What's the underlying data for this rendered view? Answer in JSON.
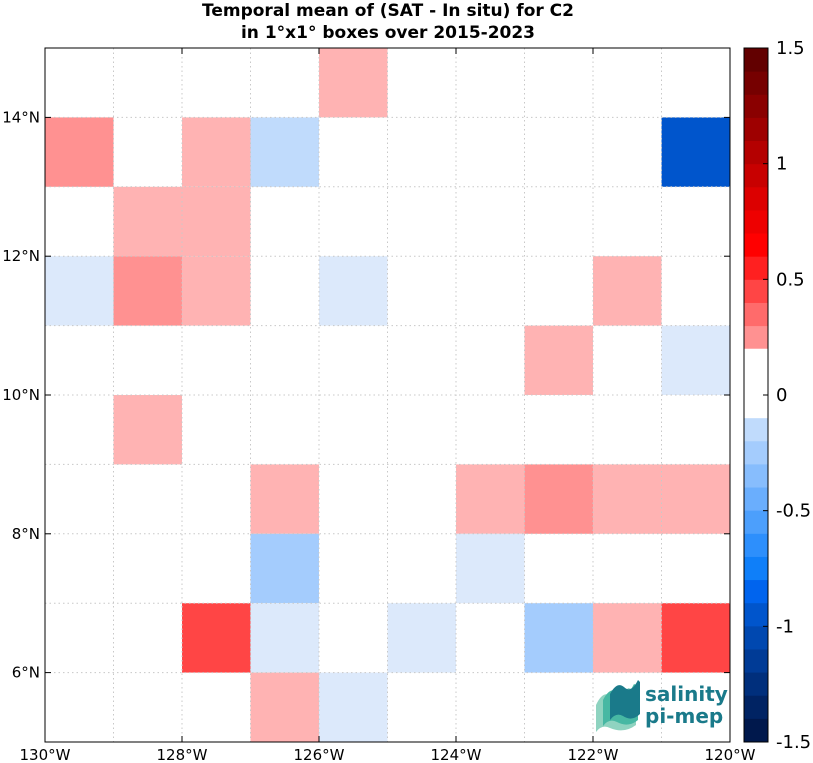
{
  "chart_data": {
    "type": "heatmap",
    "title_line1": "Temporal mean of (SAT - In situ) for C2",
    "title_line2": "in 1°x1° boxes over 2015-2023",
    "x_ticks": [
      "130°W",
      "128°W",
      "126°W",
      "124°W",
      "122°W",
      "120°W"
    ],
    "y_ticks": [
      "6°N",
      "8°N",
      "10°N",
      "12°N",
      "14°N"
    ],
    "lon_range": [
      -130,
      -120
    ],
    "lat_range": [
      5,
      15
    ],
    "grid": true,
    "colorbar": {
      "range": [
        -1.5,
        1.5
      ],
      "ticks": [
        "1.5",
        "1",
        "0.5",
        "0",
        "-0.5",
        "-1",
        "-1.5"
      ],
      "tick_values": [
        1.5,
        1,
        0.5,
        0,
        -0.5,
        -1,
        -1.5
      ]
    },
    "cells": [
      {
        "lon": -126,
        "lat": 14,
        "value": 0.15
      },
      {
        "lon": -130,
        "lat": 13,
        "value": 0.3
      },
      {
        "lon": -128,
        "lat": 13,
        "value": 0.15
      },
      {
        "lon": -127,
        "lat": 13,
        "value": -0.15
      },
      {
        "lon": -121,
        "lat": 13,
        "value": -1.0
      },
      {
        "lon": -129,
        "lat": 12,
        "value": 0.15
      },
      {
        "lon": -128,
        "lat": 12,
        "value": 0.15
      },
      {
        "lon": -130,
        "lat": 11,
        "value": -0.1
      },
      {
        "lon": -129,
        "lat": 11,
        "value": 0.3
      },
      {
        "lon": -128,
        "lat": 11,
        "value": 0.15
      },
      {
        "lon": -126,
        "lat": 11,
        "value": -0.1
      },
      {
        "lon": -122,
        "lat": 11,
        "value": 0.15
      },
      {
        "lon": -123,
        "lat": 10,
        "value": 0.15
      },
      {
        "lon": -121,
        "lat": 10,
        "value": -0.1
      },
      {
        "lon": -129,
        "lat": 9,
        "value": 0.15
      },
      {
        "lon": -127,
        "lat": 8,
        "value": 0.15
      },
      {
        "lon": -124,
        "lat": 8,
        "value": 0.15
      },
      {
        "lon": -123,
        "lat": 8,
        "value": 0.3
      },
      {
        "lon": -122,
        "lat": 8,
        "value": 0.15
      },
      {
        "lon": -121,
        "lat": 8,
        "value": 0.15
      },
      {
        "lon": -127,
        "lat": 7,
        "value": -0.25
      },
      {
        "lon": -124,
        "lat": 7,
        "value": -0.1
      },
      {
        "lon": -128,
        "lat": 6,
        "value": 0.45
      },
      {
        "lon": -127,
        "lat": 6,
        "value": -0.1
      },
      {
        "lon": -125,
        "lat": 6,
        "value": -0.1
      },
      {
        "lon": -123,
        "lat": 6,
        "value": -0.25
      },
      {
        "lon": -122,
        "lat": 6,
        "value": 0.15
      },
      {
        "lon": -121,
        "lat": 6,
        "value": 0.45
      },
      {
        "lon": -127,
        "lat": 5,
        "value": 0.15
      },
      {
        "lon": -126,
        "lat": 5,
        "value": -0.1
      }
    ]
  },
  "logo": {
    "line1": "salinity",
    "line2": "pi-mep"
  }
}
